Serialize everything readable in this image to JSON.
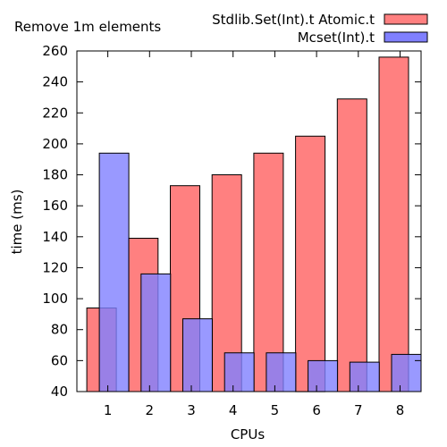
{
  "chart_data": {
    "type": "bar",
    "title": "Remove 1m elements",
    "xlabel": "CPUs",
    "ylabel": "time (ms)",
    "categories": [
      "1",
      "2",
      "3",
      "4",
      "5",
      "6",
      "7",
      "8"
    ],
    "ylim": [
      40,
      260
    ],
    "yticks": [
      40,
      60,
      80,
      100,
      120,
      140,
      160,
      180,
      200,
      220,
      240,
      260
    ],
    "grid": false,
    "legend_position": "top-right",
    "series": [
      {
        "name": "Stdlib.Set(Int).t Atomic.t",
        "color": "#ff8080",
        "values": [
          94,
          139,
          173,
          180,
          194,
          205,
          229,
          256
        ]
      },
      {
        "name": "Mcset(Int).t",
        "color": "#8080ff",
        "values": [
          194,
          116,
          87,
          65,
          65,
          60,
          59,
          64
        ]
      }
    ]
  }
}
